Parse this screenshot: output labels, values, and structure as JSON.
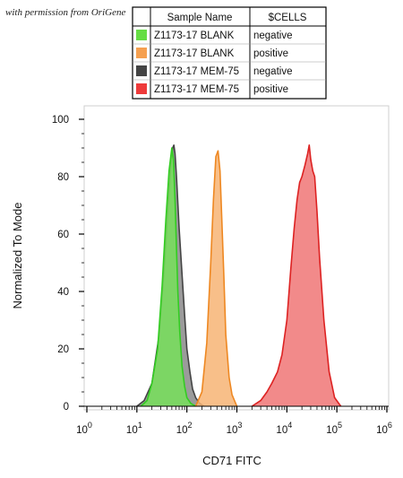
{
  "watermark": "with permission from OriGene",
  "legend": {
    "headers": [
      "Sample Name",
      "$CELLS"
    ],
    "rows": [
      {
        "sample": "Z1173-17 BLANK",
        "cells": "negative",
        "color": "#66dd44"
      },
      {
        "sample": "Z1173-17 BLANK",
        "cells": "positive",
        "color": "#f5a050"
      },
      {
        "sample": "Z1173-17 MEM-75",
        "cells": "negative",
        "color": "#444444"
      },
      {
        "sample": "Z1173-17 MEM-75",
        "cells": "positive",
        "color": "#ee3a3a"
      }
    ]
  },
  "chart_data": {
    "type": "area",
    "xlabel": "CD71 FITC",
    "ylabel": "Normalized To Mode",
    "x_scale": "log",
    "xlim": [
      1,
      1000000
    ],
    "ylim": [
      0,
      100
    ],
    "y_ticks": [
      0,
      20,
      40,
      60,
      80,
      100
    ],
    "x_ticks": [
      1,
      10,
      100,
      1000,
      10000,
      100000,
      1000000
    ],
    "x_tick_labels": [
      {
        "base": "10",
        "exp": "0"
      },
      {
        "base": "10",
        "exp": "1"
      },
      {
        "base": "10",
        "exp": "2"
      },
      {
        "base": "10",
        "exp": "3"
      },
      {
        "base": "10",
        "exp": "4"
      },
      {
        "base": "10",
        "exp": "5"
      },
      {
        "base": "10",
        "exp": "6"
      }
    ],
    "grid": false,
    "series": [
      {
        "color": "#444444",
        "fill": "#8a8a8a",
        "x": [
          10,
          14,
          20,
          28,
          35,
          42,
          48,
          52,
          55,
          58,
          62,
          70,
          80,
          90,
          100,
          115,
          130,
          150,
          180,
          220
        ],
        "y": [
          0,
          2,
          8,
          25,
          48,
          70,
          84,
          90,
          91,
          88,
          80,
          62,
          46,
          32,
          20,
          12,
          6,
          3,
          1,
          0
        ]
      },
      {
        "color": "#33cc22",
        "fill": "#77e05a",
        "x": [
          12,
          16,
          20,
          26,
          32,
          38,
          44,
          50,
          54,
          58,
          62,
          66,
          72,
          80,
          90,
          100,
          120,
          150
        ],
        "y": [
          0,
          2,
          8,
          20,
          42,
          65,
          82,
          90,
          86,
          72,
          55,
          40,
          26,
          14,
          7,
          3,
          1,
          0
        ]
      },
      {
        "color": "#ee8822",
        "fill": "#f7b474",
        "x": [
          150,
          200,
          250,
          300,
          340,
          380,
          420,
          460,
          500,
          550,
          600,
          700,
          800,
          1000
        ],
        "y": [
          0,
          5,
          22,
          50,
          72,
          87,
          89,
          82,
          65,
          45,
          25,
          10,
          4,
          0
        ]
      },
      {
        "color": "#dd2222",
        "fill": "#f07575",
        "x": [
          2000,
          3000,
          4000,
          5000,
          6500,
          8000,
          10000,
          12000,
          14000,
          16000,
          18000,
          20000,
          23000,
          26000,
          28000,
          30000,
          33000,
          36000,
          40000,
          45000,
          55000,
          70000,
          90000,
          120000
        ],
        "y": [
          0,
          2,
          5,
          8,
          12,
          18,
          30,
          48,
          62,
          72,
          78,
          80,
          84,
          88,
          91,
          86,
          82,
          80,
          68,
          52,
          30,
          12,
          3,
          0
        ]
      }
    ]
  }
}
